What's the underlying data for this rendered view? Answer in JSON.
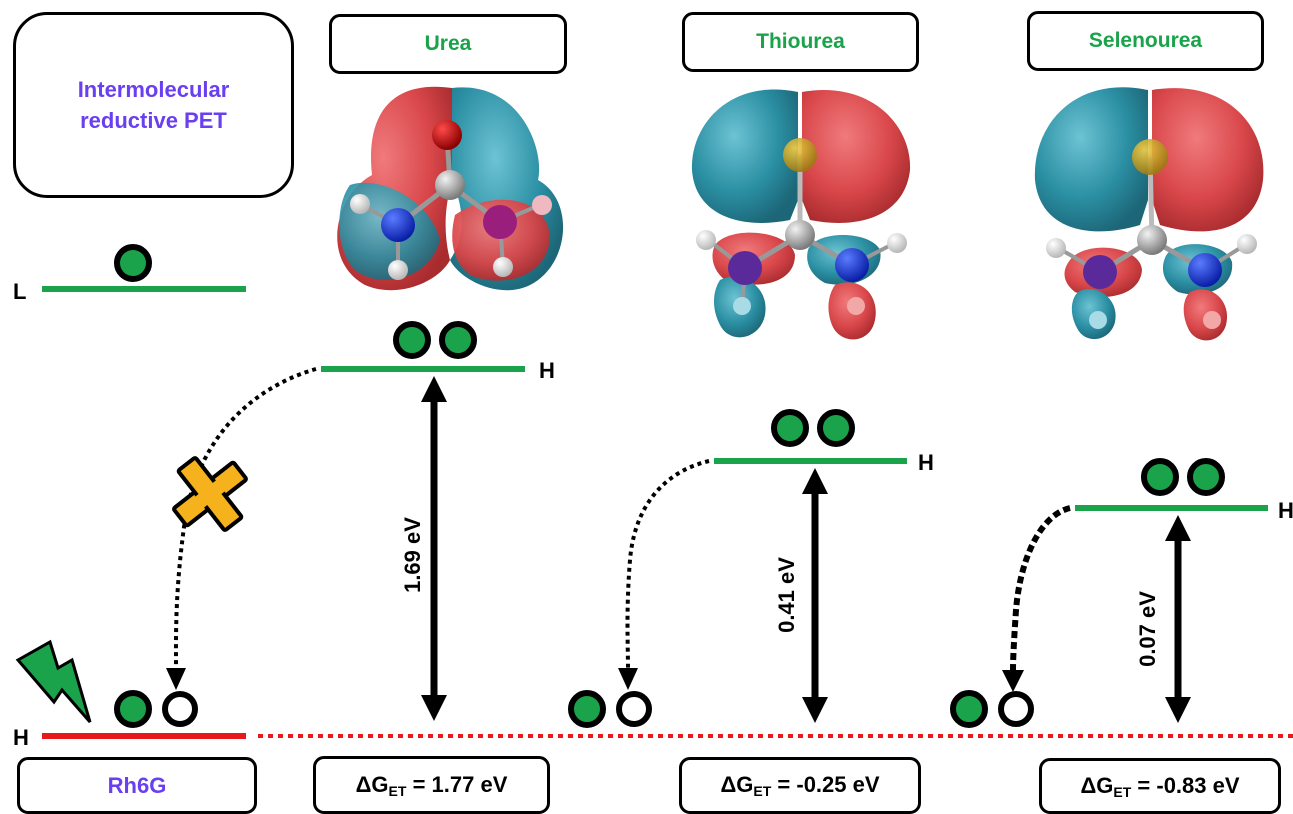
{
  "header_box": {
    "text_line1": "Intermolecular",
    "text_line2": "reductive PET"
  },
  "molecules": [
    {
      "name": "Urea",
      "gap": "1.69 eV",
      "dg_value": "= 1.77 eV"
    },
    {
      "name": "Thiourea",
      "gap": "0.41 eV",
      "dg_value": "= -0.25 eV"
    },
    {
      "name": "Selenourea",
      "gap": "0.07 eV",
      "dg_value": "= -0.83 eV"
    }
  ],
  "dye": {
    "name": "Rh6G"
  },
  "levels": {
    "lumo": "L",
    "homo": "H"
  },
  "dg_symbol": "ΔG",
  "dg_subscript": "ET",
  "colors": {
    "green": "#1aa34a",
    "red": "#e8191d",
    "purple": "#6a3ff0",
    "orbital_red": "#d9474a",
    "orbital_teal": "#2b8fa3",
    "cross": "#f5b21c"
  }
}
